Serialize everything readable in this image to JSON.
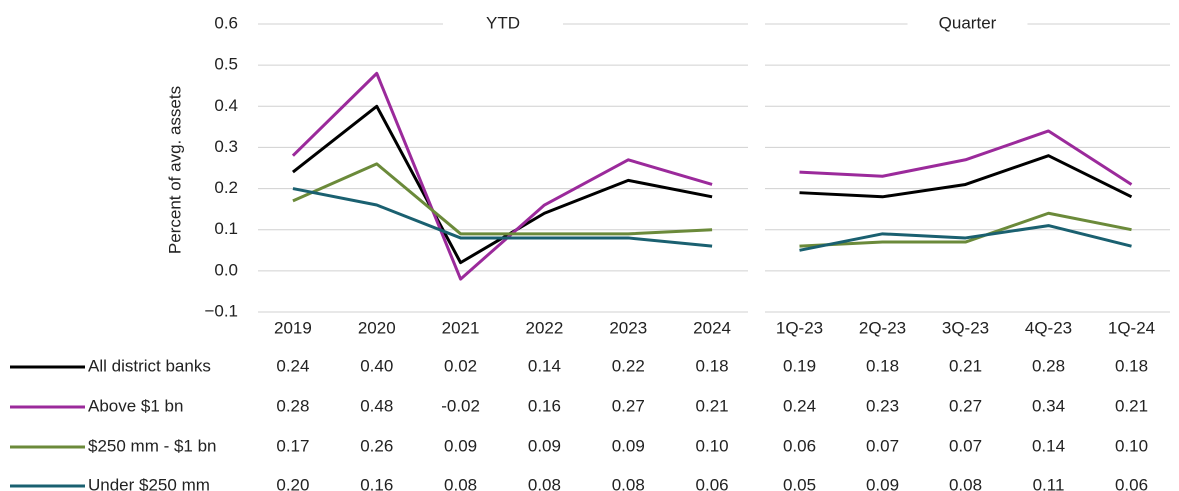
{
  "chart_data": {
    "type": "line",
    "ylabel": "Percent of avg. assets",
    "ylim": [
      -0.1,
      0.6
    ],
    "yticks": [
      {
        "value": -0.1,
        "label": "−0.1"
      },
      {
        "value": 0,
        "label": "0.0"
      },
      0.1,
      0.2,
      0.3,
      0.4,
      0.5,
      0.6
    ],
    "grid": true,
    "panels": [
      {
        "title": "YTD",
        "categories": [
          "2019",
          "2020",
          "2021",
          "2022",
          "2023",
          "2024"
        ]
      },
      {
        "title": "Quarter",
        "categories": [
          "1Q-23",
          "2Q-23",
          "3Q-23",
          "4Q-23",
          "1Q-24"
        ]
      }
    ],
    "series": [
      {
        "name": "All district banks",
        "color": "#000000",
        "values": [
          [
            0.24,
            0.4,
            0.02,
            0.14,
            0.22,
            0.18
          ],
          [
            0.19,
            0.18,
            0.21,
            0.28,
            0.18
          ]
        ],
        "value_labels": [
          [
            "0.24",
            "0.40",
            "0.02",
            "0.14",
            "0.22",
            "0.18"
          ],
          [
            "0.19",
            "0.18",
            "0.21",
            "0.28",
            "0.18"
          ]
        ]
      },
      {
        "name": "Above $1 bn",
        "color": "#9b2a9b",
        "values": [
          [
            0.28,
            0.48,
            -0.02,
            0.16,
            0.27,
            0.21
          ],
          [
            0.24,
            0.23,
            0.27,
            0.34,
            0.21
          ]
        ],
        "value_labels": [
          [
            "0.28",
            "0.48",
            "-0.02",
            "0.16",
            "0.27",
            "0.21"
          ],
          [
            "0.24",
            "0.23",
            "0.27",
            "0.34",
            "0.21"
          ]
        ]
      },
      {
        "name": "$250 mm - $1 bn",
        "color": "#6b8a3a",
        "values": [
          [
            0.17,
            0.26,
            0.09,
            0.09,
            0.09,
            0.1
          ],
          [
            0.06,
            0.07,
            0.07,
            0.14,
            0.1
          ]
        ],
        "value_labels": [
          [
            "0.17",
            "0.26",
            "0.09",
            "0.09",
            "0.09",
            "0.10"
          ],
          [
            "0.06",
            "0.07",
            "0.07",
            "0.14",
            "0.10"
          ]
        ]
      },
      {
        "name": "Under $250 mm",
        "color": "#1a6070",
        "values": [
          [
            0.2,
            0.16,
            0.08,
            0.08,
            0.08,
            0.06
          ],
          [
            0.05,
            0.09,
            0.08,
            0.11,
            0.06
          ]
        ],
        "value_labels": [
          [
            "0.20",
            "0.16",
            "0.08",
            "0.08",
            "0.08",
            "0.06"
          ],
          [
            "0.05",
            "0.09",
            "0.08",
            "0.11",
            "0.06"
          ]
        ]
      }
    ]
  }
}
